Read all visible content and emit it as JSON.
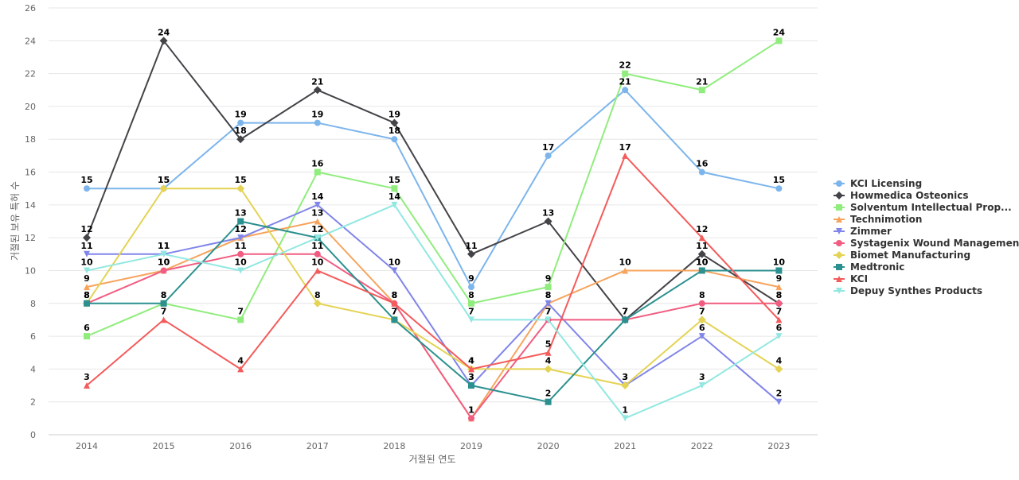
{
  "chart_data": {
    "type": "line",
    "xlabel": "거절된 연도",
    "ylabel": "거절된 보유 특허 수",
    "ylim": [
      0,
      26
    ],
    "yticks": [
      0,
      2,
      4,
      6,
      8,
      10,
      12,
      14,
      16,
      18,
      20,
      22,
      24,
      26
    ],
    "grid": true,
    "legend_position": "right",
    "categories": [
      "2014",
      "2015",
      "2016",
      "2017",
      "2018",
      "2019",
      "2020",
      "2021",
      "2022",
      "2023"
    ],
    "series": [
      {
        "name": "KCI Licensing",
        "color": "#7cb5ec",
        "marker": "circle",
        "values": [
          15,
          15,
          19,
          19,
          18,
          9,
          17,
          21,
          16,
          15
        ]
      },
      {
        "name": "Howmedica Osteonics",
        "color": "#434348",
        "marker": "diamond",
        "values": [
          12,
          24,
          18,
          21,
          19,
          11,
          13,
          7,
          11,
          8
        ]
      },
      {
        "name": "Solventum Intellectual Prop...",
        "color": "#90ed7d",
        "marker": "square",
        "values": [
          6,
          8,
          7,
          16,
          15,
          8,
          9,
          22,
          21,
          24
        ]
      },
      {
        "name": "Technimotion",
        "color": "#f7a35c",
        "marker": "triangle",
        "values": [
          9,
          10,
          12,
          13,
          8,
          1,
          8,
          10,
          10,
          9
        ]
      },
      {
        "name": "Zimmer",
        "color": "#8085e9",
        "marker": "triangle-down",
        "values": [
          11,
          11,
          12,
          14,
          10,
          3,
          8,
          3,
          6,
          2
        ]
      },
      {
        "name": "Systagenix Wound Management...",
        "color": "#f15c80",
        "marker": "circle",
        "values": [
          8,
          10,
          11,
          11,
          8,
          1,
          7,
          7,
          8,
          8
        ]
      },
      {
        "name": "Biomet Manufacturing",
        "color": "#e4d354",
        "marker": "diamond",
        "values": [
          8,
          15,
          15,
          8,
          7,
          4,
          4,
          3,
          7,
          4
        ]
      },
      {
        "name": "Medtronic",
        "color": "#2b908f",
        "marker": "square",
        "values": [
          8,
          8,
          13,
          12,
          7,
          3,
          2,
          7,
          10,
          10
        ]
      },
      {
        "name": "KCI",
        "color": "#f45b5b",
        "marker": "triangle",
        "values": [
          3,
          7,
          4,
          10,
          8,
          4,
          5,
          17,
          12,
          7
        ]
      },
      {
        "name": "Depuy Synthes Products",
        "color": "#91e8e1",
        "marker": "triangle-down",
        "values": [
          10,
          11,
          10,
          12,
          14,
          7,
          7,
          1,
          3,
          6
        ]
      }
    ]
  }
}
